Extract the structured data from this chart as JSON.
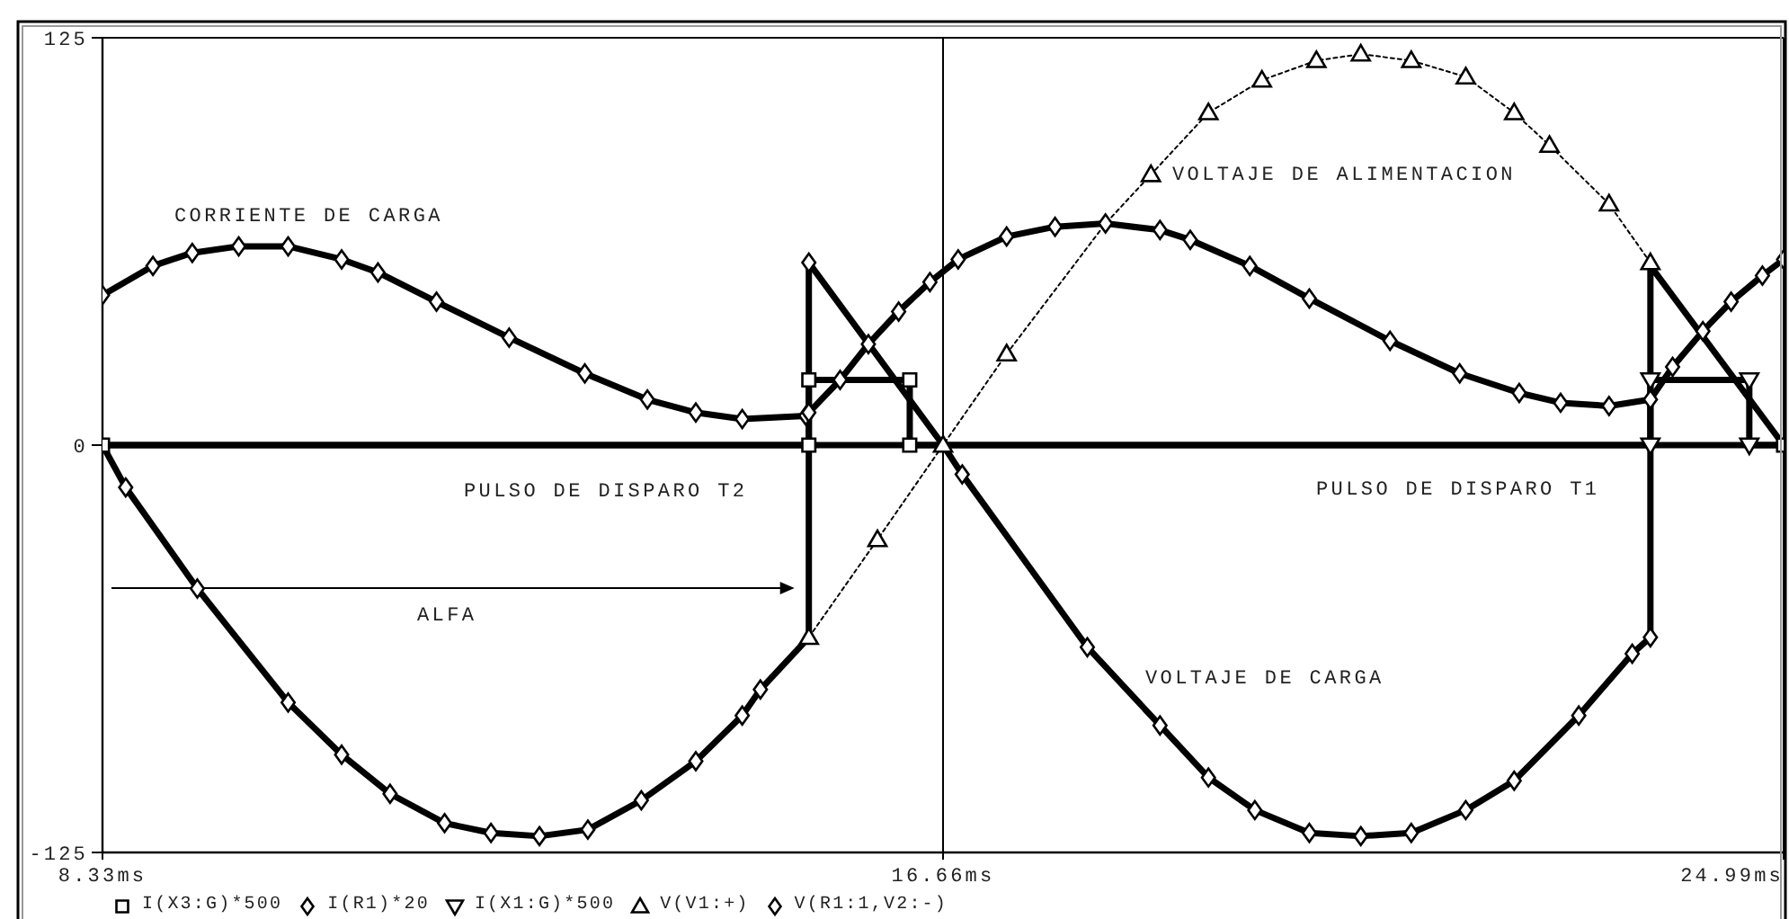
{
  "chart_data": {
    "type": "line",
    "xlim": [
      8.33,
      24.99
    ],
    "xticks": [
      {
        "value": 8.33,
        "label": "8.33ms"
      },
      {
        "value": 16.66,
        "label": "16.66ms"
      },
      {
        "value": 24.99,
        "label": "24.99ms"
      }
    ],
    "ylim": [
      -125,
      125
    ],
    "yticks": [
      -125,
      0,
      125
    ],
    "grid": true,
    "legend": "bottom",
    "series": [
      {
        "name": "I(X3:G)*500",
        "color": "#000000",
        "marker": "square",
        "x": [
          8.33,
          15.33,
          15.33,
          16.33,
          16.33,
          24.99
        ],
        "values": [
          0,
          0,
          20,
          20,
          0,
          0
        ]
      },
      {
        "name": "I(R1)*20",
        "color": "#000000",
        "marker": "diamond",
        "x": [
          8.33,
          8.83,
          9.22,
          9.68,
          10.17,
          10.7,
          11.06,
          11.64,
          12.36,
          13.11,
          13.73,
          14.21,
          14.67,
          15.3,
          15.33,
          15.64,
          15.92,
          16.22,
          16.53,
          16.81,
          17.29,
          17.77,
          18.27,
          18.81,
          19.11,
          19.7,
          20.29,
          21.09,
          21.78,
          22.37,
          22.78,
          23.26,
          23.67,
          23.89,
          24.19,
          24.47,
          24.78,
          24.99
        ],
        "values": [
          46,
          55,
          59,
          61,
          61,
          57,
          53,
          44,
          33,
          22,
          14,
          10,
          8,
          9,
          10,
          20,
          31,
          41,
          50,
          57,
          64,
          67,
          68,
          66,
          63,
          55,
          45,
          32,
          22,
          16,
          13,
          12,
          14,
          24,
          35,
          44,
          52,
          57
        ]
      },
      {
        "name": "I(X1:G)*500",
        "color": "#000000",
        "marker": "triangle-down",
        "x": [
          8.33,
          23.67,
          23.67,
          24.65,
          24.65,
          24.99
        ],
        "values": [
          0,
          0,
          20,
          20,
          0,
          0
        ]
      },
      {
        "name": "V(V1:+)",
        "color": "#000000",
        "marker": "triangle",
        "line_style": "dotted",
        "x": [
          15.33,
          16.01,
          16.66,
          17.29,
          18.27,
          18.72,
          19.29,
          19.82,
          20.36,
          20.8,
          21.3,
          21.84,
          22.32,
          22.67,
          23.26,
          23.67
        ],
        "values": [
          -59,
          -29,
          0,
          28,
          68,
          83,
          102,
          112,
          118,
          120,
          118,
          113,
          102,
          92,
          74,
          56
        ]
      },
      {
        "name": "V(R1:1,V2:-)",
        "color": "#000000",
        "marker": "diamond",
        "x": [
          8.33,
          8.56,
          9.27,
          10.17,
          10.7,
          11.18,
          11.72,
          12.18,
          12.66,
          13.14,
          13.67,
          14.21,
          14.67,
          14.85,
          15.33,
          15.33,
          16.66,
          16.85,
          18.09,
          18.81,
          19.29,
          19.75,
          20.29,
          20.8,
          21.3,
          21.84,
          22.32,
          22.96,
          23.49,
          23.67,
          23.67,
          24.99
        ],
        "values": [
          0,
          -13,
          -44,
          -79,
          -95,
          -107,
          -116,
          -119,
          -120,
          -118,
          -109,
          -97,
          -83,
          -75,
          -59,
          56,
          0,
          -9,
          -62,
          -86,
          -102,
          -112,
          -119,
          -120,
          -119,
          -112,
          -103,
          -83,
          -64,
          -59,
          55,
          0
        ]
      }
    ],
    "annotations": [
      "CORRIENTE DE CARGA",
      "VOLTAJE DE ALIMENTACION",
      "PULSO DE DISPARO T2",
      "PULSO DE DISPARO T1",
      "ALFA",
      "VOLTAJE DE CARGA"
    ]
  }
}
